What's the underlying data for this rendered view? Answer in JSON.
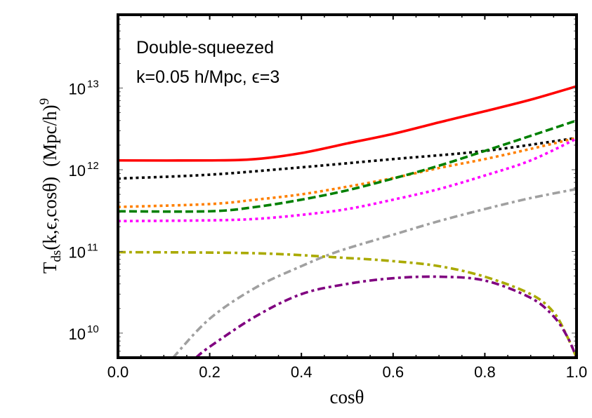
{
  "chart_data": {
    "type": "line",
    "title": "",
    "annotations": [
      "Double-squeezed",
      "k=0.05 h/Mpc, ϵ=3"
    ],
    "xlabel": "cosθ",
    "ylabel": {
      "main": "T",
      "sub": "ds",
      "args": "(k,ϵ,cosθ)",
      "units": "(Mpc/h)",
      "units_exp": "9"
    },
    "xlim": [
      0,
      1
    ],
    "ylim": [
      5000000000.0,
      79000000000000.0
    ],
    "yscale": "log",
    "grid": false,
    "legend": "none",
    "x_ticks": [
      "0.0",
      "0.2",
      "0.4",
      "0.6",
      "0.8",
      "1.0"
    ],
    "y_ticks": [
      {
        "base": "10",
        "exp": "10"
      },
      {
        "base": "10",
        "exp": "11"
      },
      {
        "base": "10",
        "exp": "12"
      },
      {
        "base": "10",
        "exp": "13"
      }
    ],
    "series": [
      {
        "color": "#ff0000",
        "style": "solid",
        "x": [
          0,
          0.2,
          0.3,
          0.4,
          0.5,
          0.6,
          0.7,
          0.8,
          0.9,
          1.0
        ],
        "y": [
          1300000000000.0,
          1300000000000.0,
          1350000000000.0,
          1600000000000.0,
          2100000000000.0,
          2750000000000.0,
          3800000000000.0,
          5200000000000.0,
          7200000000000.0,
          10500000000000.0
        ]
      },
      {
        "color": "#000000",
        "style": "dotted",
        "x": [
          0,
          0.2,
          0.4,
          0.6,
          0.8,
          1.0
        ],
        "y": [
          780000000000.0,
          870000000000.0,
          1070000000000.0,
          1350000000000.0,
          1700000000000.0,
          2450000000000.0
        ]
      },
      {
        "color": "#ff8000",
        "style": "dotted",
        "x": [
          0,
          0.2,
          0.3,
          0.4,
          0.5,
          0.6,
          0.7,
          0.8,
          0.9,
          1.0
        ],
        "y": [
          350000000000.0,
          380000000000.0,
          430000000000.0,
          500000000000.0,
          620000000000.0,
          790000000000.0,
          1050000000000.0,
          1350000000000.0,
          1800000000000.0,
          2450000000000.0
        ]
      },
      {
        "color": "#008000",
        "style": "dashed",
        "x": [
          0,
          0.2,
          0.3,
          0.4,
          0.5,
          0.6,
          0.7,
          0.8,
          0.9,
          1.0
        ],
        "y": [
          310000000000.0,
          310000000000.0,
          350000000000.0,
          430000000000.0,
          560000000000.0,
          780000000000.0,
          1120000000000.0,
          1700000000000.0,
          2600000000000.0,
          4000000000000.0
        ]
      },
      {
        "color": "#ff00ff",
        "style": "dotted",
        "x": [
          0,
          0.2,
          0.3,
          0.4,
          0.5,
          0.6,
          0.7,
          0.8,
          0.9,
          1.0
        ],
        "y": [
          235000000000.0,
          240000000000.0,
          250000000000.0,
          280000000000.0,
          330000000000.0,
          430000000000.0,
          580000000000.0,
          850000000000.0,
          1300000000000.0,
          2400000000000.0
        ]
      },
      {
        "color": "#a0a0a0",
        "style": "dashdot",
        "x": [
          0.12,
          0.2,
          0.3,
          0.4,
          0.48,
          0.6,
          0.7,
          0.8,
          0.9,
          1.0
        ],
        "y": [
          5000000000.0,
          15000000000.0,
          36000000000.0,
          66000000000.0,
          100000000000.0,
          160000000000.0,
          235000000000.0,
          330000000000.0,
          450000000000.0,
          580000000000.0
        ]
      },
      {
        "color": "#aaaa00",
        "style": "dashdot",
        "x": [
          0,
          0.3,
          0.5,
          0.6,
          0.7,
          0.8,
          0.9,
          0.95,
          0.98,
          1.0
        ],
        "y": [
          98000000000.0,
          95000000000.0,
          83000000000.0,
          76000000000.0,
          66000000000.0,
          49000000000.0,
          30000000000.0,
          18000000000.0,
          9000000000.0,
          5000000000.0
        ]
      },
      {
        "color": "#800080",
        "style": "dashdot",
        "x": [
          0.17,
          0.2,
          0.3,
          0.4,
          0.5,
          0.6,
          0.7,
          0.8,
          0.9,
          0.95,
          0.98,
          1.0
        ],
        "y": [
          5000000000.0,
          6800000000.0,
          16000000000.0,
          30000000000.0,
          40000000000.0,
          47000000000.0,
          49000000000.0,
          44000000000.0,
          27000000000.0,
          16000000000.0,
          9000000000.0,
          5000000000.0
        ]
      }
    ]
  }
}
